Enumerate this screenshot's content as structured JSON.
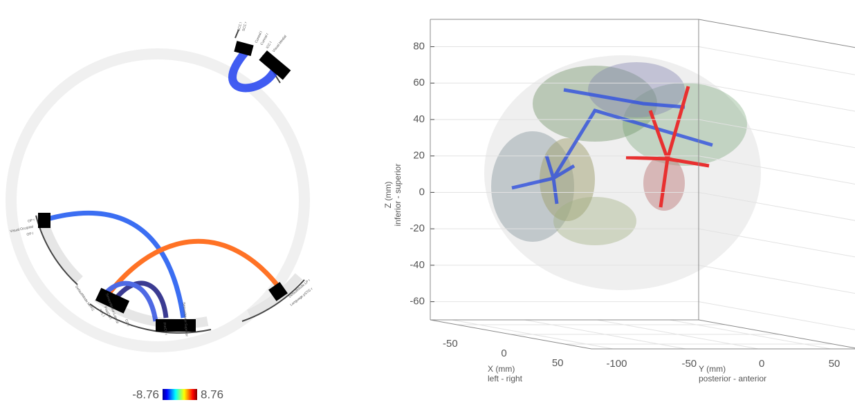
{
  "chart_data": [
    {
      "type": "connectogram",
      "node_labels": [
        "SCC l",
        "SCC r",
        "Cuneal l",
        "Cuneal r",
        "ICC l",
        "Visual.Medial",
        "OP r",
        "Visual.Occipital",
        "OP l",
        "DefaultMode.LP r",
        "Language.pSTG r",
        "DefaultMode.MPFC",
        "SPL l",
        "PostCG l",
        "SensoriMotor.Lateral",
        "CO l",
        "PreCG r",
        "SensoriMotor.Superior"
      ],
      "clim": [
        -8.76,
        8.76
      ]
    },
    {
      "type": "surface3d",
      "zlabel": "Z (mm)",
      "zsublabel": "inferior - superior",
      "xlabel": "X (mm)",
      "xsublabel": "left - right",
      "ylabel": "Y (mm)",
      "ysublabel": "posterior - anterior",
      "xlim": [
        -75,
        75
      ],
      "xticks": [
        -50,
        0,
        50
      ],
      "ylim": [
        -115,
        70
      ],
      "yticks": [
        -100,
        -50,
        0,
        50
      ],
      "zlim": [
        -70,
        95
      ],
      "zticks": [
        -60,
        -40,
        -20,
        0,
        20,
        40,
        60,
        80
      ],
      "grid": true
    }
  ]
}
